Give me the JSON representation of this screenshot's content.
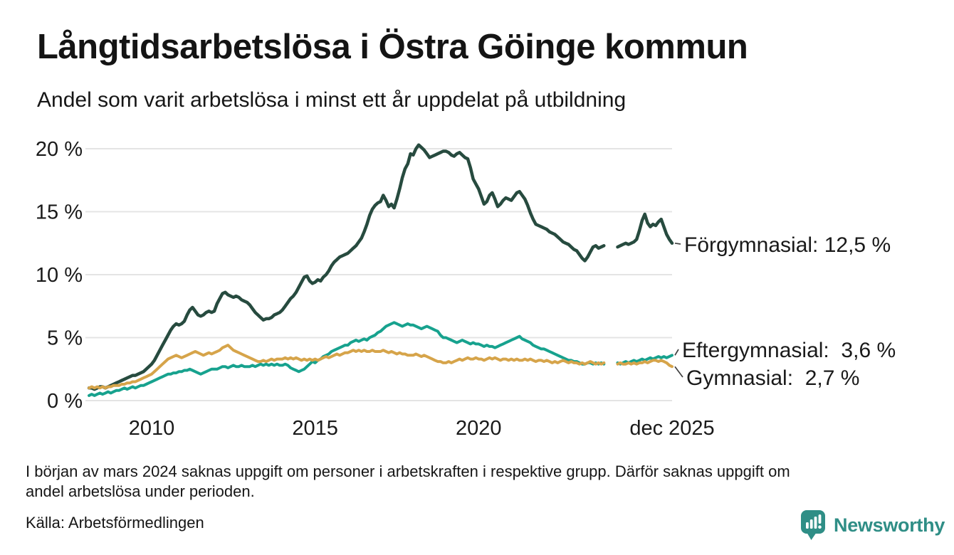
{
  "header": {
    "title": "Långtidsarbetslösa i Östra Göinge kommun",
    "subtitle": "Andel som varit arbetslösa i minst ett år uppdelat på utbildning"
  },
  "chart_data": {
    "type": "line",
    "title": "Långtidsarbetslösa i Östra Göinge kommun",
    "x_unit": "month",
    "x_range": [
      "2008-02",
      "2025-12"
    ],
    "x_ticks": [
      {
        "label": "2010",
        "month_index": 23
      },
      {
        "label": "2015",
        "month_index": 83
      },
      {
        "label": "2020",
        "month_index": 143
      },
      {
        "label": "dec 2025",
        "month_index": 214
      }
    ],
    "y_ticks": [
      0,
      5,
      10,
      15,
      20
    ],
    "y_tick_suffix": " %",
    "ylim": [
      0,
      21
    ],
    "grid": "horizontal",
    "grid_color": "#e4e4e4",
    "text_color": "#1a1a1a",
    "leader_color": "#404040",
    "data_gap_months": [
      "2023-12",
      "2024-01",
      "2024-02",
      "2024-03"
    ],
    "series": [
      {
        "id": "forgymnasial",
        "name": "Förgymnasial",
        "color": "#274b3f",
        "end_value": 12.5,
        "end_label": "Förgymnasial: 12,5 %",
        "values": [
          1.0,
          1.0,
          0.9,
          1.0,
          1.1,
          1.1,
          1.0,
          1.1,
          1.2,
          1.3,
          1.4,
          1.5,
          1.6,
          1.7,
          1.8,
          1.9,
          2.0,
          2.0,
          2.1,
          2.2,
          2.3,
          2.5,
          2.7,
          2.9,
          3.2,
          3.6,
          4.0,
          4.4,
          4.8,
          5.2,
          5.6,
          5.9,
          6.1,
          6.0,
          6.1,
          6.3,
          6.8,
          7.2,
          7.4,
          7.1,
          6.8,
          6.7,
          6.8,
          7.0,
          7.1,
          7.0,
          7.1,
          7.7,
          8.1,
          8.5,
          8.6,
          8.4,
          8.3,
          8.2,
          8.3,
          8.2,
          8.0,
          7.9,
          7.8,
          7.6,
          7.3,
          7.0,
          6.8,
          6.6,
          6.4,
          6.5,
          6.5,
          6.6,
          6.8,
          6.9,
          7.0,
          7.2,
          7.5,
          7.8,
          8.1,
          8.3,
          8.6,
          9.0,
          9.4,
          9.8,
          9.9,
          9.5,
          9.3,
          9.4,
          9.6,
          9.5,
          9.8,
          10.0,
          10.3,
          10.7,
          11.0,
          11.2,
          11.4,
          11.5,
          11.6,
          11.7,
          11.9,
          12.1,
          12.3,
          12.6,
          12.9,
          13.4,
          14.0,
          14.7,
          15.2,
          15.5,
          15.7,
          15.8,
          16.3,
          15.9,
          15.4,
          15.6,
          15.3,
          16.0,
          16.8,
          17.7,
          18.4,
          18.8,
          19.6,
          19.5,
          20.0,
          20.3,
          20.1,
          19.9,
          19.6,
          19.3,
          19.4,
          19.5,
          19.6,
          19.7,
          19.8,
          19.8,
          19.7,
          19.5,
          19.4,
          19.6,
          19.7,
          19.5,
          19.3,
          19.2,
          18.5,
          17.6,
          17.2,
          16.8,
          16.2,
          15.6,
          15.8,
          16.3,
          16.5,
          16.0,
          15.4,
          15.6,
          15.9,
          16.1,
          16.0,
          15.9,
          16.2,
          16.5,
          16.6,
          16.3,
          16.0,
          15.5,
          14.9,
          14.4,
          14.0,
          13.9,
          13.8,
          13.7,
          13.6,
          13.4,
          13.3,
          13.2,
          13.0,
          12.8,
          12.6,
          12.5,
          12.4,
          12.2,
          12.0,
          11.9,
          11.6,
          11.3,
          11.1,
          11.4,
          11.8,
          12.2,
          12.3,
          12.1,
          12.2,
          12.3,
          null,
          null,
          null,
          null,
          12.2,
          12.3,
          12.4,
          12.5,
          12.4,
          12.5,
          12.6,
          12.8,
          13.5,
          14.3,
          14.8,
          14.1,
          13.8,
          14.0,
          13.9,
          14.2,
          14.4,
          13.8,
          13.2,
          12.8,
          12.5
        ]
      },
      {
        "id": "eftergymnasial",
        "name": "Eftergymnasial",
        "color": "#17a28e",
        "end_value": 3.6,
        "end_label": "Eftergymnasial:  3,6 %",
        "values": [
          0.4,
          0.5,
          0.4,
          0.5,
          0.6,
          0.5,
          0.6,
          0.7,
          0.6,
          0.7,
          0.8,
          0.8,
          0.9,
          1.0,
          0.9,
          1.0,
          1.1,
          1.0,
          1.1,
          1.2,
          1.2,
          1.3,
          1.4,
          1.5,
          1.6,
          1.7,
          1.8,
          1.9,
          2.0,
          2.1,
          2.1,
          2.2,
          2.2,
          2.3,
          2.3,
          2.4,
          2.4,
          2.5,
          2.4,
          2.3,
          2.2,
          2.1,
          2.2,
          2.3,
          2.4,
          2.5,
          2.5,
          2.5,
          2.6,
          2.7,
          2.7,
          2.6,
          2.7,
          2.8,
          2.7,
          2.7,
          2.8,
          2.7,
          2.7,
          2.7,
          2.8,
          2.7,
          2.8,
          2.9,
          2.8,
          2.9,
          2.8,
          2.9,
          2.8,
          2.9,
          2.8,
          2.8,
          2.9,
          2.8,
          2.6,
          2.5,
          2.4,
          2.3,
          2.4,
          2.5,
          2.7,
          2.9,
          3.1,
          3.0,
          3.2,
          3.3,
          3.5,
          3.6,
          3.7,
          3.9,
          4.0,
          4.1,
          4.2,
          4.3,
          4.4,
          4.4,
          4.6,
          4.7,
          4.8,
          4.7,
          4.8,
          4.9,
          4.8,
          5.0,
          5.1,
          5.2,
          5.4,
          5.5,
          5.7,
          5.9,
          6.0,
          6.1,
          6.2,
          6.1,
          6.0,
          5.9,
          6.0,
          6.1,
          6.0,
          6.0,
          5.9,
          5.8,
          5.7,
          5.8,
          5.9,
          5.8,
          5.7,
          5.6,
          5.5,
          5.2,
          5.0,
          5.0,
          4.9,
          4.8,
          4.7,
          4.6,
          4.7,
          4.8,
          4.7,
          4.6,
          4.5,
          4.6,
          4.5,
          4.5,
          4.4,
          4.3,
          4.4,
          4.3,
          4.3,
          4.2,
          4.3,
          4.4,
          4.5,
          4.6,
          4.7,
          4.8,
          4.9,
          5.0,
          5.1,
          4.9,
          4.8,
          4.7,
          4.6,
          4.4,
          4.3,
          4.2,
          4.1,
          4.1,
          4.0,
          3.9,
          3.8,
          3.7,
          3.6,
          3.5,
          3.4,
          3.3,
          3.2,
          3.2,
          3.1,
          3.1,
          3.0,
          2.9,
          2.9,
          3.0,
          3.0,
          2.9,
          3.0,
          2.9,
          3.0,
          2.9,
          null,
          null,
          null,
          null,
          3.0,
          2.9,
          3.0,
          3.1,
          3.0,
          3.1,
          3.2,
          3.1,
          3.2,
          3.3,
          3.2,
          3.3,
          3.4,
          3.3,
          3.4,
          3.5,
          3.4,
          3.5,
          3.4,
          3.5,
          3.6
        ]
      },
      {
        "id": "gymnasial",
        "name": "Gymnasial",
        "color": "#d6a44a",
        "end_value": 2.7,
        "end_label": "Gymnasial:  2,7 %",
        "values": [
          1.0,
          1.1,
          1.0,
          1.1,
          1.0,
          1.1,
          1.0,
          1.1,
          1.1,
          1.2,
          1.2,
          1.2,
          1.3,
          1.3,
          1.4,
          1.4,
          1.5,
          1.5,
          1.6,
          1.7,
          1.8,
          1.9,
          2.0,
          2.1,
          2.3,
          2.5,
          2.7,
          2.9,
          3.1,
          3.3,
          3.4,
          3.5,
          3.6,
          3.5,
          3.4,
          3.5,
          3.6,
          3.7,
          3.8,
          3.9,
          3.8,
          3.7,
          3.6,
          3.7,
          3.8,
          3.7,
          3.8,
          3.9,
          4.0,
          4.2,
          4.3,
          4.4,
          4.2,
          4.0,
          3.9,
          3.8,
          3.7,
          3.6,
          3.5,
          3.4,
          3.3,
          3.2,
          3.1,
          3.1,
          3.2,
          3.1,
          3.2,
          3.3,
          3.2,
          3.3,
          3.3,
          3.3,
          3.4,
          3.3,
          3.4,
          3.3,
          3.4,
          3.3,
          3.2,
          3.3,
          3.2,
          3.3,
          3.2,
          3.3,
          3.2,
          3.3,
          3.4,
          3.5,
          3.4,
          3.5,
          3.6,
          3.7,
          3.6,
          3.7,
          3.8,
          3.8,
          3.9,
          4.0,
          3.9,
          4.0,
          3.9,
          4.0,
          3.9,
          3.9,
          4.0,
          3.9,
          3.9,
          3.9,
          4.0,
          3.9,
          3.8,
          3.9,
          3.8,
          3.7,
          3.8,
          3.7,
          3.7,
          3.6,
          3.6,
          3.6,
          3.7,
          3.6,
          3.5,
          3.6,
          3.5,
          3.4,
          3.3,
          3.2,
          3.1,
          3.1,
          3.0,
          3.0,
          3.1,
          3.0,
          3.1,
          3.2,
          3.3,
          3.2,
          3.3,
          3.4,
          3.3,
          3.3,
          3.4,
          3.3,
          3.3,
          3.2,
          3.3,
          3.4,
          3.3,
          3.4,
          3.3,
          3.2,
          3.3,
          3.3,
          3.2,
          3.3,
          3.2,
          3.3,
          3.2,
          3.2,
          3.3,
          3.2,
          3.3,
          3.2,
          3.1,
          3.2,
          3.2,
          3.1,
          3.2,
          3.1,
          3.0,
          3.1,
          3.0,
          3.1,
          3.2,
          3.1,
          3.0,
          3.1,
          3.0,
          3.0,
          2.9,
          3.0,
          2.9,
          3.0,
          3.1,
          3.0,
          2.9,
          3.0,
          2.9,
          3.0,
          null,
          null,
          null,
          null,
          2.9,
          3.0,
          2.9,
          2.9,
          3.0,
          2.9,
          3.0,
          2.9,
          3.0,
          3.0,
          3.1,
          3.0,
          3.1,
          3.2,
          3.2,
          3.1,
          3.2,
          3.1,
          3.0,
          2.8,
          2.7
        ]
      }
    ]
  },
  "footnote": {
    "line1": "I början av mars 2024 saknas uppgift om personer i arbetskraften i respektive grupp. Därför saknas uppgift om",
    "line2": "andel arbetslösa under perioden."
  },
  "source": {
    "text": "Källa: Arbetsförmedlingen"
  },
  "branding": {
    "name": "Newsworthy",
    "color": "#2f8e86"
  }
}
